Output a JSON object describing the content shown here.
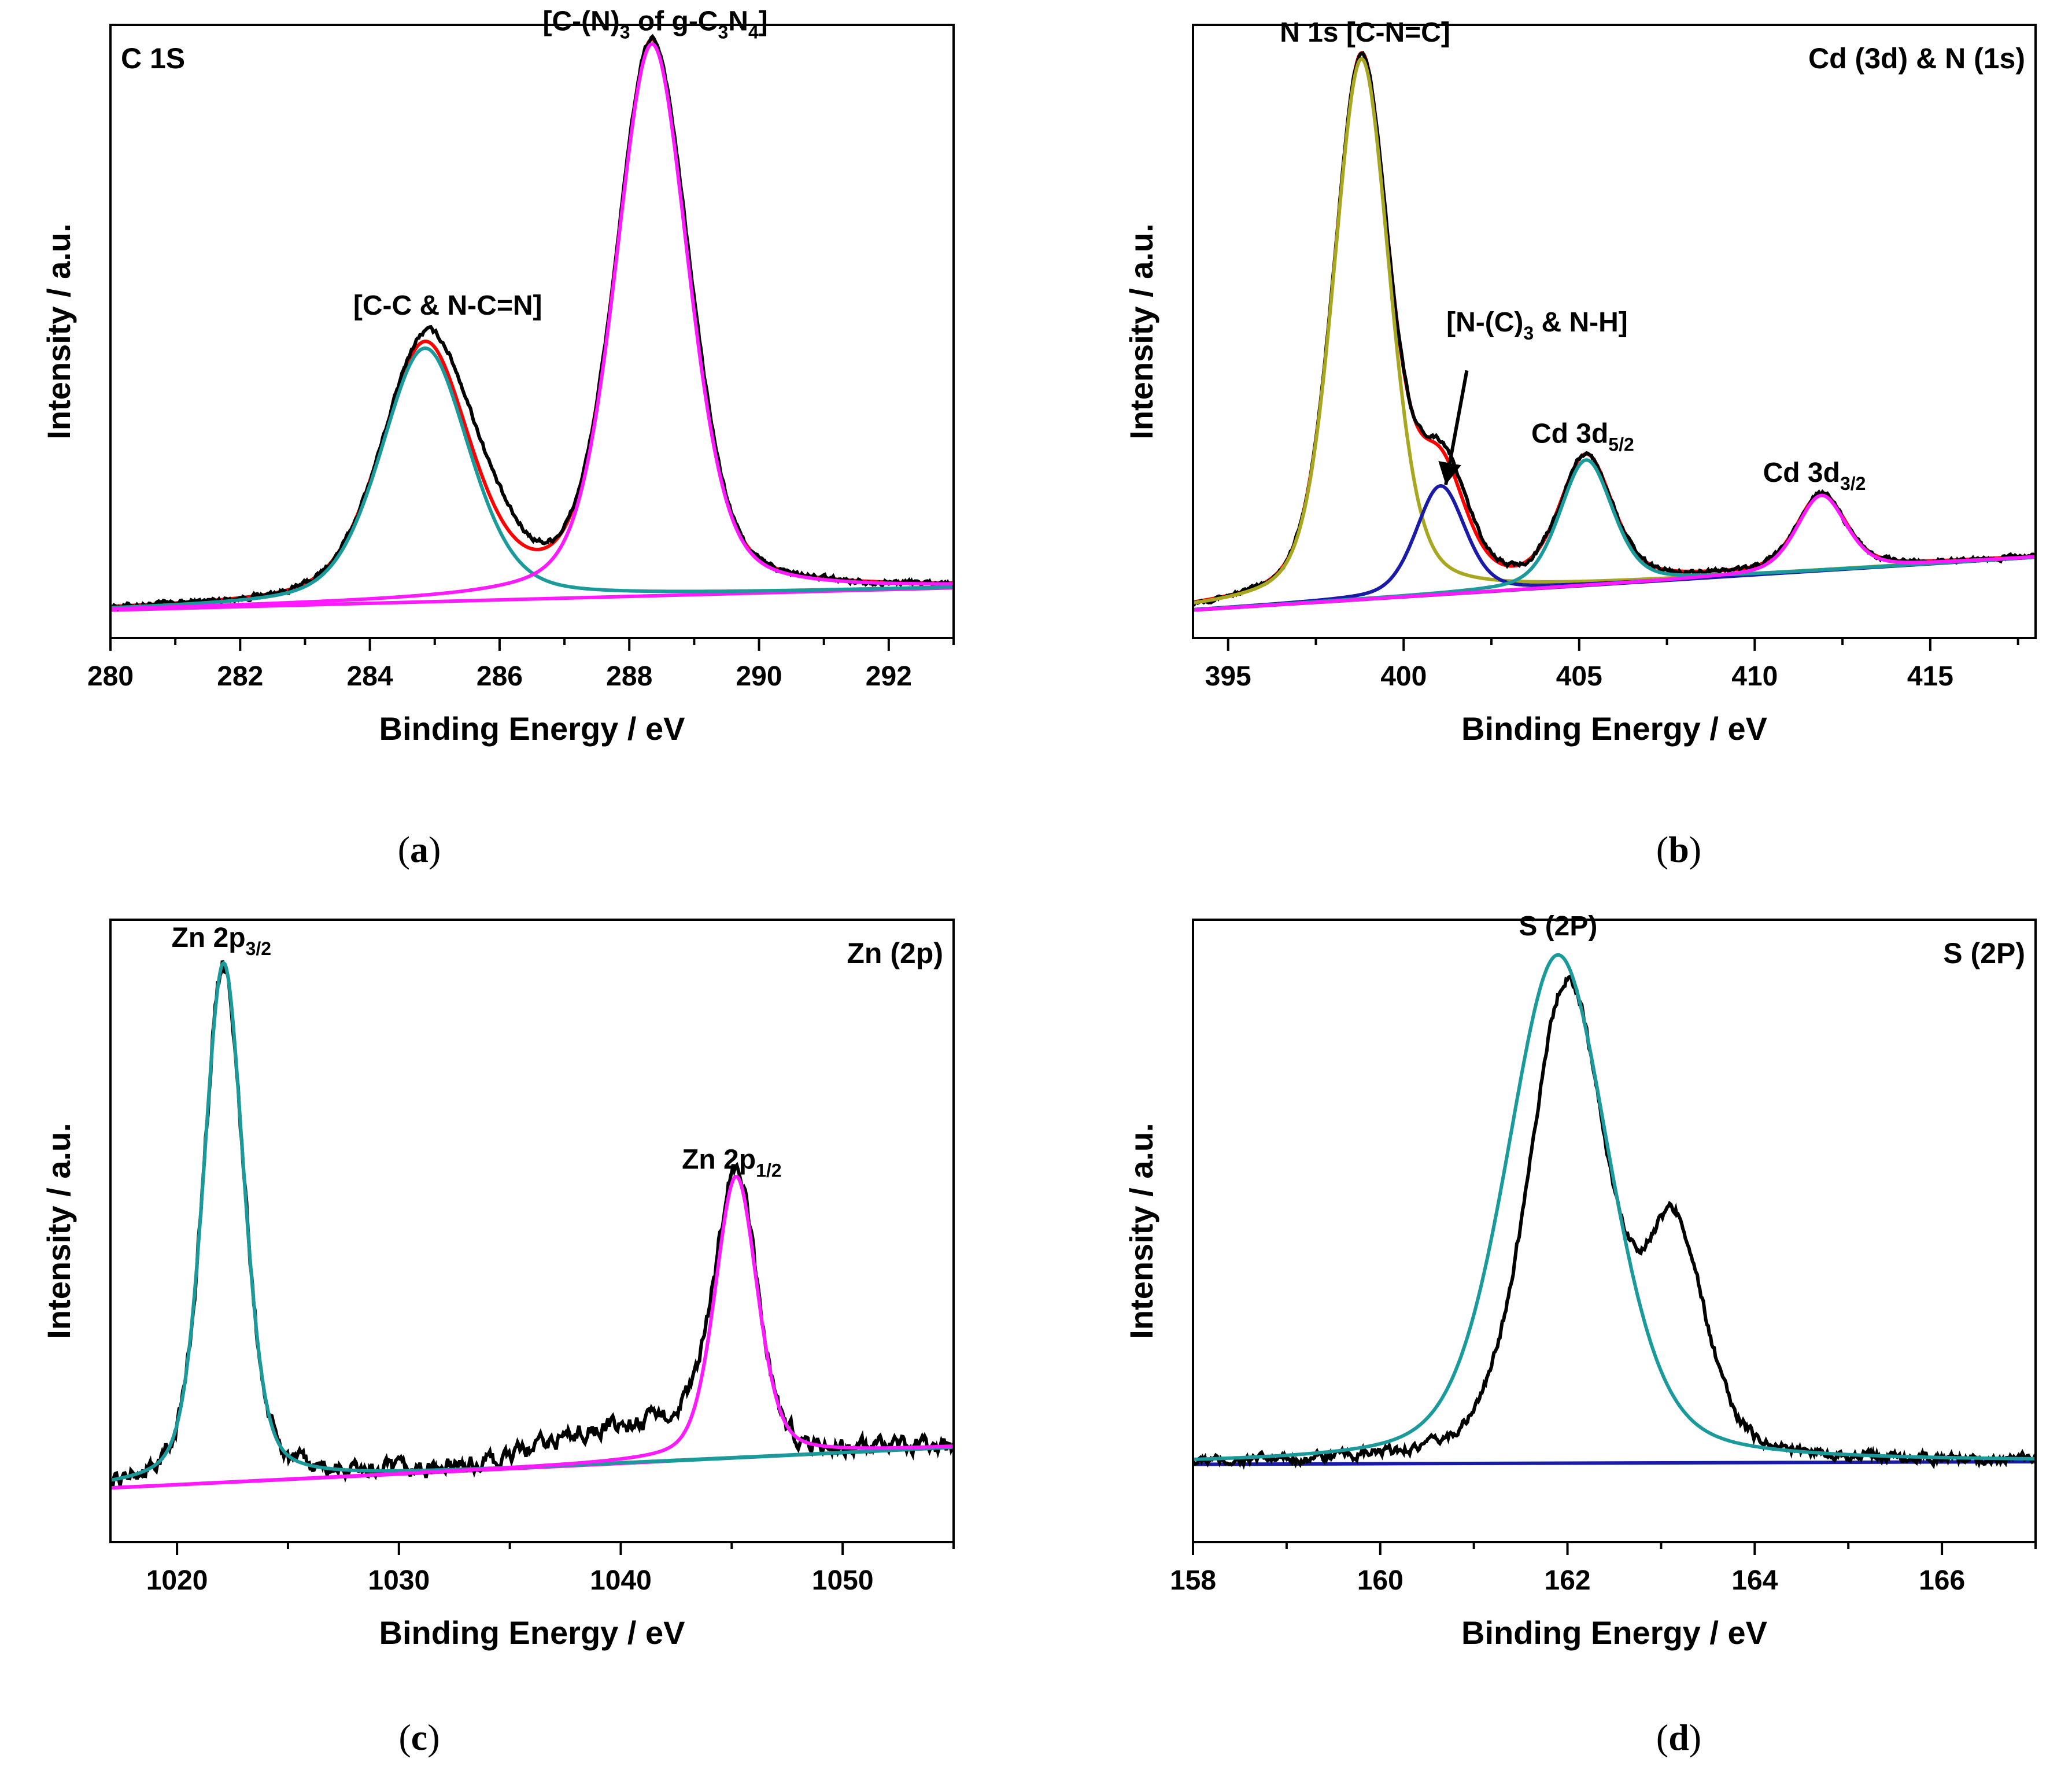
{
  "chart_data": [
    {
      "type": "line",
      "caption": "a",
      "panel_label": "C 1S",
      "xlabel": "Binding Energy / eV",
      "ylabel": "Intensity / a.u.",
      "xlim": [
        280,
        293
      ],
      "ylim": [
        -0.05,
        1.05
      ],
      "xticks": [
        280,
        282,
        284,
        286,
        288,
        290,
        292
      ],
      "baseline": [
        0.0,
        0.04
      ],
      "peaks": [
        {
          "name": "C-C & N-C=N",
          "center": 284.85,
          "height": 0.455,
          "width": 0.68,
          "color": "#1a9a9a"
        },
        {
          "name": "C-(N)3 of g-C3N4",
          "center": 288.35,
          "height": 0.99,
          "width": 0.56,
          "color": "#ff19ff"
        }
      ],
      "baseline_color": "#ff19ff",
      "envelope_color": "#ff0000",
      "measured": {
        "color": "#000000",
        "noise": 0.006,
        "distortions": [
          {
            "c": 285.7,
            "w": 0.55,
            "a": 0.06
          },
          {
            "c": 289.0,
            "w": 0.3,
            "a": 0.02
          }
        ]
      },
      "annotations": [
        {
          "lines": [
            {
              "t": "[C-C & N-C=N]"
            }
          ],
          "x": 285.2,
          "y": 0.53
        },
        {
          "lines": [
            {
              "t": "[C-(N)"
            },
            {
              "t": "3",
              "sub": true
            },
            {
              "t": " of g-C"
            },
            {
              "t": "3",
              "sub": true
            },
            {
              "t": "N"
            },
            {
              "t": "4",
              "sub": true
            },
            {
              "t": "]"
            }
          ],
          "x": 288.4,
          "y": 1.04
        }
      ]
    },
    {
      "type": "line",
      "caption": "b",
      "panel_label": "Cd (3d) & N (1s)",
      "xlabel": "Binding Energy / eV",
      "ylabel": "Intensity / a.u.",
      "xlim": [
        394,
        418
      ],
      "ylim": [
        -0.05,
        1.05
      ],
      "xticks": [
        395,
        400,
        405,
        410,
        415
      ],
      "baseline": [
        0.0,
        0.095
      ],
      "peaks": [
        {
          "name": "N 1s [C-N=C]",
          "center": 398.8,
          "height": 0.97,
          "width": 0.8,
          "color": "#a8a820"
        },
        {
          "name": "N-(C)3 & N-H",
          "center": 401.05,
          "height": 0.195,
          "width": 0.7,
          "color": "#1a1aa8"
        },
        {
          "name": "Cd 3d5/2",
          "center": 405.2,
          "height": 0.225,
          "width": 0.75,
          "color": "#1a9a9a"
        },
        {
          "name": "Cd 3d3/2",
          "center": 411.9,
          "height": 0.135,
          "width": 0.7,
          "color": "#ff19ff"
        }
      ],
      "baseline_color": "#1a1aa8",
      "envelope_color": "#ff0000",
      "measured": {
        "color": "#000000",
        "noise": 0.005,
        "distortions": [
          {
            "c": 401.6,
            "w": 0.7,
            "a": 0.02
          }
        ]
      },
      "annotations": [
        {
          "lines": [
            {
              "t": "N 1s [C-N=C]"
            }
          ],
          "x": 398.9,
          "y": 1.02
        },
        {
          "lines": [
            {
              "t": "[N-(C)"
            },
            {
              "t": "3",
              "sub": true
            },
            {
              "t": " & N-H]"
            }
          ],
          "x": 403.8,
          "y": 0.5
        },
        {
          "lines": [
            {
              "t": "Cd 3d"
            },
            {
              "t": "5/2",
              "sub": true
            }
          ],
          "x": 405.1,
          "y": 0.3
        },
        {
          "lines": [
            {
              "t": "Cd 3d"
            },
            {
              "t": "3/2",
              "sub": true
            }
          ],
          "x": 411.7,
          "y": 0.23
        }
      ],
      "arrows": [
        {
          "from": [
            401.8,
            0.43
          ],
          "to": [
            401.2,
            0.225
          ]
        }
      ]
    },
    {
      "type": "line",
      "caption": "c",
      "panel_label": "Zn (2p)",
      "xlabel": "Binding Energy / eV",
      "ylabel": "Intensity / a.u.",
      "xlim": [
        1017,
        1055
      ],
      "ylim": [
        -0.1,
        1.05
      ],
      "xticks": [
        1020,
        1030,
        1040,
        1050
      ],
      "baseline": [
        0.0,
        0.075
      ],
      "peaks": [
        {
          "name": "Zn 2p3/2",
          "center": 1022.1,
          "height": 0.96,
          "width": 0.9,
          "color": "#1a9a9a"
        },
        {
          "name": "Zn 2p1/2",
          "center": 1045.2,
          "height": 0.52,
          "width": 0.95,
          "color": "#ff19ff"
        }
      ],
      "baseline_color": "#ff19ff",
      "baseline_color_right": "#1a9a9a",
      "envelope_color": null,
      "measured": {
        "color": "#000000",
        "noise": 0.02,
        "distortions": [
          {
            "c": 1039.5,
            "w": 3.0,
            "a": 0.06
          },
          {
            "c": 1043.0,
            "w": 1.2,
            "a": 0.03
          }
        ]
      },
      "annotations": [
        {
          "lines": [
            {
              "t": "Zn 2p"
            },
            {
              "t": "3/2",
              "sub": true
            }
          ],
          "x": 1022.0,
          "y": 1.0
        },
        {
          "lines": [
            {
              "t": "Zn 2p"
            },
            {
              "t": "1/2",
              "sub": true
            }
          ],
          "x": 1045.0,
          "y": 0.59
        }
      ]
    },
    {
      "type": "line",
      "caption": "d",
      "panel_label": "S (2P)",
      "xlabel": "Binding Energy / eV",
      "ylabel": "Intensity / a.u.",
      "xlim": [
        158,
        167
      ],
      "ylim": [
        -0.15,
        1.05
      ],
      "xticks": [
        158,
        160,
        162,
        164,
        166
      ],
      "baseline": [
        0.0,
        0.005
      ],
      "peaks": [
        {
          "name": "S 2P",
          "center": 161.9,
          "height": 0.98,
          "width": 0.55,
          "color": "#1a9a9a"
        }
      ],
      "baseline_color": "#1a1aa8",
      "envelope_color": null,
      "measured": {
        "color": "#000000",
        "noise": 0.012,
        "special": "s2p"
      },
      "annotations": [
        {
          "lines": [
            {
              "t": "S (2P)"
            }
          ],
          "x": 161.9,
          "y": 1.02
        }
      ]
    }
  ]
}
